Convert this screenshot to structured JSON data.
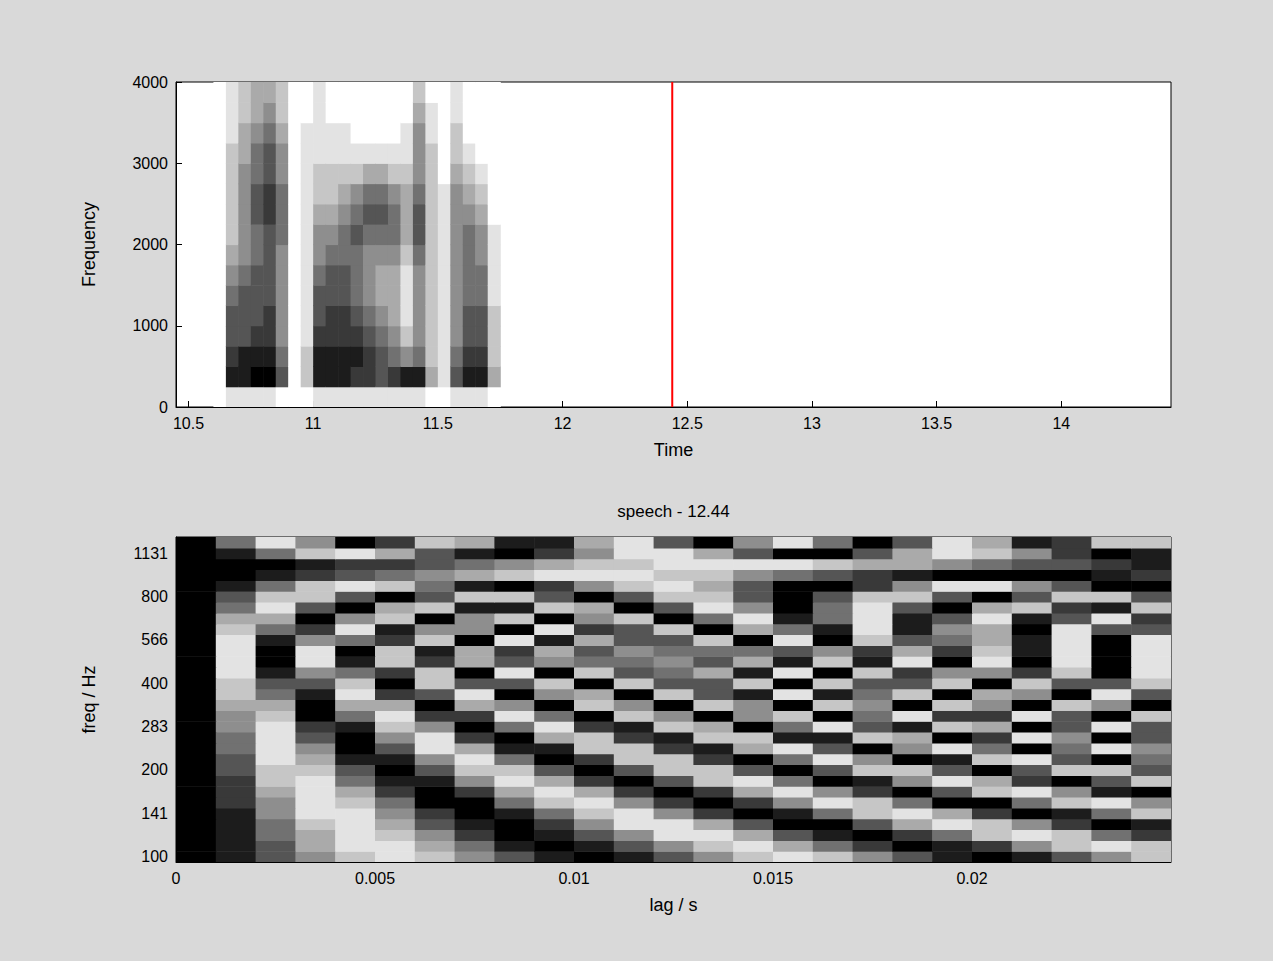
{
  "chart_data": [
    {
      "type": "heatmap",
      "x_label": "Time",
      "y_label": "Frequency",
      "xlim": [
        10.45,
        14.44
      ],
      "xticks": [
        10.5,
        11,
        11.5,
        12,
        12.5,
        13,
        13.5,
        14
      ],
      "ylim": [
        0,
        4000
      ],
      "yticks": [
        0,
        1000,
        2000,
        3000,
        4000
      ],
      "zlim": [
        0,
        9
      ],
      "x": [
        10.6,
        10.65,
        10.7,
        10.75,
        10.8,
        10.85,
        10.9,
        10.95,
        11,
        11.05,
        11.1,
        11.15,
        11.2,
        11.25,
        11.3,
        11.35,
        11.4,
        11.45,
        11.5,
        11.55,
        11.6,
        11.65,
        11.7
      ],
      "y": [
        0,
        250,
        500,
        750,
        1000,
        1250,
        1500,
        1750,
        2000,
        2250,
        2500,
        2750,
        3000,
        3250,
        3500,
        3750
      ],
      "values": [
        [
          0,
          0,
          0,
          0,
          0,
          0,
          0,
          0,
          0,
          0,
          0,
          0,
          0,
          0,
          0,
          0
        ],
        [
          1,
          8,
          7,
          6,
          6,
          5,
          4,
          3,
          2,
          2,
          2,
          2,
          2,
          1,
          1,
          1
        ],
        [
          1,
          8,
          8,
          6,
          6,
          6,
          5,
          4,
          4,
          4,
          4,
          4,
          3,
          3,
          2,
          2
        ],
        [
          1,
          9,
          8,
          7,
          6,
          6,
          6,
          5,
          5,
          6,
          6,
          5,
          5,
          4,
          3,
          3
        ],
        [
          1,
          9,
          8,
          7,
          7,
          6,
          6,
          6,
          6,
          7,
          7,
          6,
          6,
          5,
          4,
          3
        ],
        [
          0,
          6,
          5,
          4,
          4,
          4,
          4,
          4,
          5,
          5,
          5,
          4,
          4,
          3,
          2,
          2
        ],
        [
          0,
          0,
          0,
          0,
          0,
          0,
          0,
          0,
          0,
          0,
          0,
          0,
          0,
          0,
          0,
          0
        ],
        [
          0,
          2,
          2,
          1,
          1,
          1,
          1,
          1,
          1,
          1,
          1,
          1,
          1,
          1,
          0,
          0
        ],
        [
          1,
          8,
          8,
          7,
          6,
          6,
          5,
          4,
          4,
          3,
          2,
          2,
          1,
          1,
          1,
          1
        ],
        [
          1,
          8,
          8,
          7,
          7,
          6,
          6,
          5,
          4,
          3,
          2,
          2,
          1,
          1,
          0,
          0
        ],
        [
          1,
          8,
          8,
          7,
          7,
          6,
          6,
          5,
          5,
          4,
          3,
          2,
          1,
          1,
          0,
          0
        ],
        [
          1,
          7,
          8,
          7,
          6,
          5,
          5,
          5,
          6,
          5,
          4,
          2,
          1,
          0,
          0,
          0
        ],
        [
          1,
          7,
          7,
          6,
          5,
          4,
          4,
          4,
          5,
          6,
          5,
          3,
          1,
          0,
          0,
          0
        ],
        [
          1,
          6,
          6,
          5,
          4,
          3,
          3,
          4,
          5,
          6,
          5,
          3,
          1,
          0,
          0,
          0
        ],
        [
          1,
          7,
          5,
          4,
          3,
          3,
          3,
          4,
          5,
          5,
          4,
          2,
          1,
          0,
          0,
          0
        ],
        [
          1,
          8,
          4,
          2,
          1,
          1,
          1,
          2,
          3,
          3,
          3,
          2,
          1,
          1,
          0,
          0
        ],
        [
          1,
          8,
          5,
          4,
          4,
          4,
          4,
          5,
          6,
          6,
          5,
          4,
          4,
          4,
          3,
          2
        ],
        [
          0,
          3,
          2,
          2,
          2,
          2,
          2,
          2,
          2,
          2,
          2,
          2,
          2,
          1,
          1,
          0
        ],
        [
          0,
          1,
          1,
          1,
          1,
          1,
          1,
          1,
          1,
          1,
          1,
          0,
          0,
          0,
          0,
          0
        ],
        [
          1,
          6,
          5,
          4,
          4,
          4,
          4,
          4,
          4,
          4,
          4,
          3,
          2,
          2,
          1,
          1
        ],
        [
          1,
          8,
          7,
          6,
          6,
          5,
          5,
          5,
          5,
          4,
          3,
          2,
          1,
          0,
          0,
          0
        ],
        [
          1,
          8,
          7,
          6,
          6,
          5,
          5,
          4,
          4,
          3,
          2,
          1,
          0,
          0,
          0,
          0
        ],
        [
          0,
          3,
          2,
          2,
          2,
          1,
          1,
          1,
          1,
          0,
          0,
          0,
          0,
          0,
          0,
          0
        ]
      ],
      "annotations": [
        {
          "type": "vline",
          "x": 12.44,
          "color": "#ff0000"
        }
      ]
    },
    {
      "type": "heatmap",
      "title": "speech - 12.44",
      "x_label": "lag / s",
      "y_label": "freq / Hz",
      "xlim": [
        0,
        0.025
      ],
      "xticks": [
        0,
        0.005,
        0.01,
        0.015,
        0.02
      ],
      "zlim": [
        0,
        9
      ],
      "x": [
        0,
        0.001,
        0.002,
        0.003,
        0.004,
        0.005,
        0.006,
        0.007,
        0.008,
        0.009,
        0.01,
        0.011,
        0.012,
        0.013,
        0.014,
        0.015,
        0.016,
        0.017,
        0.018,
        0.019,
        0.02,
        0.021,
        0.022,
        0.023,
        0.024
      ],
      "categories": [
        100,
        null,
        null,
        null,
        141,
        null,
        null,
        null,
        200,
        null,
        null,
        null,
        283,
        null,
        null,
        null,
        400,
        null,
        null,
        null,
        566,
        null,
        null,
        null,
        800,
        null,
        null,
        null,
        1131,
        null
      ],
      "values": [
        [
          9,
          8,
          6,
          4,
          2,
          1,
          2,
          4,
          6,
          8,
          9,
          8,
          6,
          4,
          2,
          1,
          2,
          4,
          6,
          8,
          9,
          8,
          6,
          4,
          2
        ],
        [
          9,
          8,
          6,
          3,
          1,
          1,
          3,
          5,
          8,
          9,
          8,
          6,
          4,
          2,
          1,
          3,
          5,
          7,
          9,
          8,
          7,
          4,
          2,
          1,
          2
        ],
        [
          9,
          8,
          5,
          3,
          1,
          2,
          4,
          7,
          9,
          8,
          6,
          4,
          1,
          1,
          3,
          6,
          8,
          9,
          7,
          5,
          2,
          1,
          2,
          5,
          7
        ],
        [
          9,
          8,
          5,
          2,
          1,
          3,
          6,
          8,
          9,
          7,
          4,
          1,
          1,
          3,
          6,
          9,
          9,
          6,
          3,
          1,
          2,
          4,
          7,
          9,
          8
        ],
        [
          9,
          8,
          4,
          1,
          1,
          4,
          7,
          9,
          8,
          5,
          2,
          1,
          4,
          7,
          9,
          8,
          5,
          2,
          1,
          3,
          7,
          9,
          8,
          5,
          2
        ],
        [
          9,
          7,
          4,
          1,
          2,
          5,
          9,
          9,
          5,
          2,
          1,
          4,
          7,
          9,
          7,
          4,
          1,
          2,
          5,
          9,
          9,
          5,
          2,
          1,
          4
        ],
        [
          9,
          7,
          3,
          1,
          3,
          7,
          9,
          7,
          3,
          1,
          3,
          7,
          9,
          7,
          3,
          1,
          4,
          7,
          9,
          6,
          2,
          1,
          4,
          8,
          9
        ],
        [
          9,
          7,
          2,
          1,
          5,
          8,
          8,
          4,
          1,
          3,
          7,
          9,
          6,
          2,
          1,
          5,
          9,
          8,
          4,
          1,
          3,
          7,
          9,
          6,
          2
        ],
        [
          9,
          6,
          2,
          2,
          6,
          9,
          6,
          2,
          2,
          6,
          9,
          6,
          2,
          2,
          6,
          9,
          6,
          2,
          2,
          6,
          9,
          6,
          2,
          2,
          6
        ],
        [
          9,
          6,
          1,
          3,
          8,
          8,
          4,
          1,
          5,
          9,
          7,
          2,
          2,
          7,
          9,
          5,
          1,
          4,
          9,
          8,
          2,
          1,
          6,
          9,
          5
        ],
        [
          9,
          5,
          1,
          4,
          9,
          6,
          1,
          3,
          8,
          8,
          2,
          2,
          7,
          8,
          3,
          1,
          6,
          9,
          4,
          1,
          5,
          9,
          5,
          1,
          4
        ],
        [
          9,
          5,
          1,
          6,
          9,
          4,
          1,
          7,
          9,
          3,
          2,
          7,
          8,
          2,
          2,
          8,
          8,
          2,
          3,
          9,
          7,
          1,
          4,
          9,
          6
        ],
        [
          9,
          4,
          1,
          7,
          8,
          2,
          4,
          9,
          5,
          1,
          7,
          8,
          2,
          3,
          9,
          5,
          1,
          6,
          8,
          2,
          3,
          9,
          6,
          1,
          6
        ],
        [
          9,
          4,
          2,
          9,
          5,
          1,
          7,
          7,
          1,
          5,
          9,
          2,
          4,
          9,
          4,
          2,
          9,
          5,
          1,
          7,
          7,
          1,
          6,
          9,
          2
        ],
        [
          9,
          3,
          3,
          9,
          3,
          3,
          9,
          3,
          4,
          9,
          2,
          4,
          9,
          2,
          4,
          9,
          2,
          4,
          9,
          2,
          4,
          9,
          2,
          4,
          9
        ],
        [
          9,
          2,
          5,
          8,
          1,
          7,
          6,
          1,
          9,
          4,
          3,
          9,
          2,
          6,
          8,
          1,
          8,
          5,
          2,
          9,
          3,
          4,
          9,
          1,
          6
        ],
        [
          9,
          2,
          6,
          6,
          2,
          9,
          2,
          6,
          6,
          2,
          9,
          2,
          6,
          6,
          2,
          9,
          2,
          6,
          6,
          2,
          9,
          2,
          6,
          6,
          2
        ],
        [
          9,
          1,
          8,
          4,
          5,
          7,
          2,
          9,
          1,
          9,
          2,
          6,
          5,
          3,
          8,
          1,
          9,
          2,
          7,
          4,
          4,
          7,
          2,
          9,
          1
        ],
        [
          9,
          1,
          9,
          1,
          8,
          2,
          7,
          3,
          6,
          4,
          5,
          5,
          4,
          6,
          3,
          8,
          2,
          8,
          1,
          9,
          1,
          9,
          1,
          9,
          1
        ],
        [
          9,
          1,
          9,
          1,
          9,
          2,
          8,
          3,
          7,
          3,
          6,
          4,
          5,
          5,
          5,
          6,
          4,
          7,
          3,
          7,
          2,
          8,
          1,
          9,
          1
        ],
        [
          9,
          1,
          8,
          4,
          5,
          7,
          2,
          9,
          1,
          8,
          3,
          6,
          6,
          2,
          9,
          1,
          9,
          2,
          6,
          5,
          3,
          8,
          1,
          9,
          1
        ],
        [
          9,
          2,
          5,
          7,
          1,
          8,
          4,
          4,
          9,
          1,
          7,
          6,
          2,
          9,
          3,
          5,
          8,
          1,
          8,
          4,
          3,
          9,
          1,
          6,
          6
        ],
        [
          9,
          3,
          3,
          9,
          4,
          2,
          9,
          4,
          2,
          9,
          4,
          2,
          9,
          5,
          1,
          8,
          5,
          1,
          8,
          6,
          1,
          8,
          6,
          1,
          7
        ],
        [
          9,
          5,
          1,
          6,
          9,
          3,
          2,
          8,
          8,
          2,
          3,
          9,
          6,
          1,
          4,
          9,
          5,
          1,
          6,
          9,
          3,
          2,
          7,
          8,
          2
        ],
        [
          9,
          6,
          2,
          2,
          6,
          9,
          6,
          2,
          2,
          6,
          9,
          6,
          2,
          2,
          6,
          9,
          6,
          2,
          2,
          6,
          9,
          6,
          2,
          2,
          6
        ],
        [
          9,
          8,
          5,
          2,
          1,
          2,
          5,
          8,
          9,
          7,
          4,
          2,
          1,
          3,
          6,
          9,
          9,
          7,
          4,
          1,
          1,
          4,
          6,
          9,
          9
        ],
        [
          9,
          9,
          8,
          7,
          6,
          5,
          4,
          3,
          2,
          1,
          1,
          1,
          2,
          2,
          4,
          5,
          6,
          7,
          8,
          9,
          9,
          9,
          9,
          8,
          7
        ],
        [
          9,
          9,
          9,
          8,
          7,
          7,
          6,
          5,
          4,
          3,
          2,
          2,
          1,
          1,
          1,
          1,
          2,
          3,
          3,
          4,
          5,
          6,
          6,
          7,
          8
        ],
        [
          9,
          8,
          5,
          2,
          1,
          3,
          6,
          8,
          9,
          7,
          4,
          1,
          1,
          3,
          6,
          9,
          9,
          6,
          3,
          1,
          2,
          4,
          7,
          9,
          8
        ],
        [
          9,
          5,
          1,
          4,
          9,
          7,
          2,
          3,
          8,
          8,
          3,
          1,
          6,
          9,
          4,
          1,
          5,
          9,
          6,
          1,
          3,
          8,
          7,
          2,
          2
        ]
      ]
    }
  ]
}
